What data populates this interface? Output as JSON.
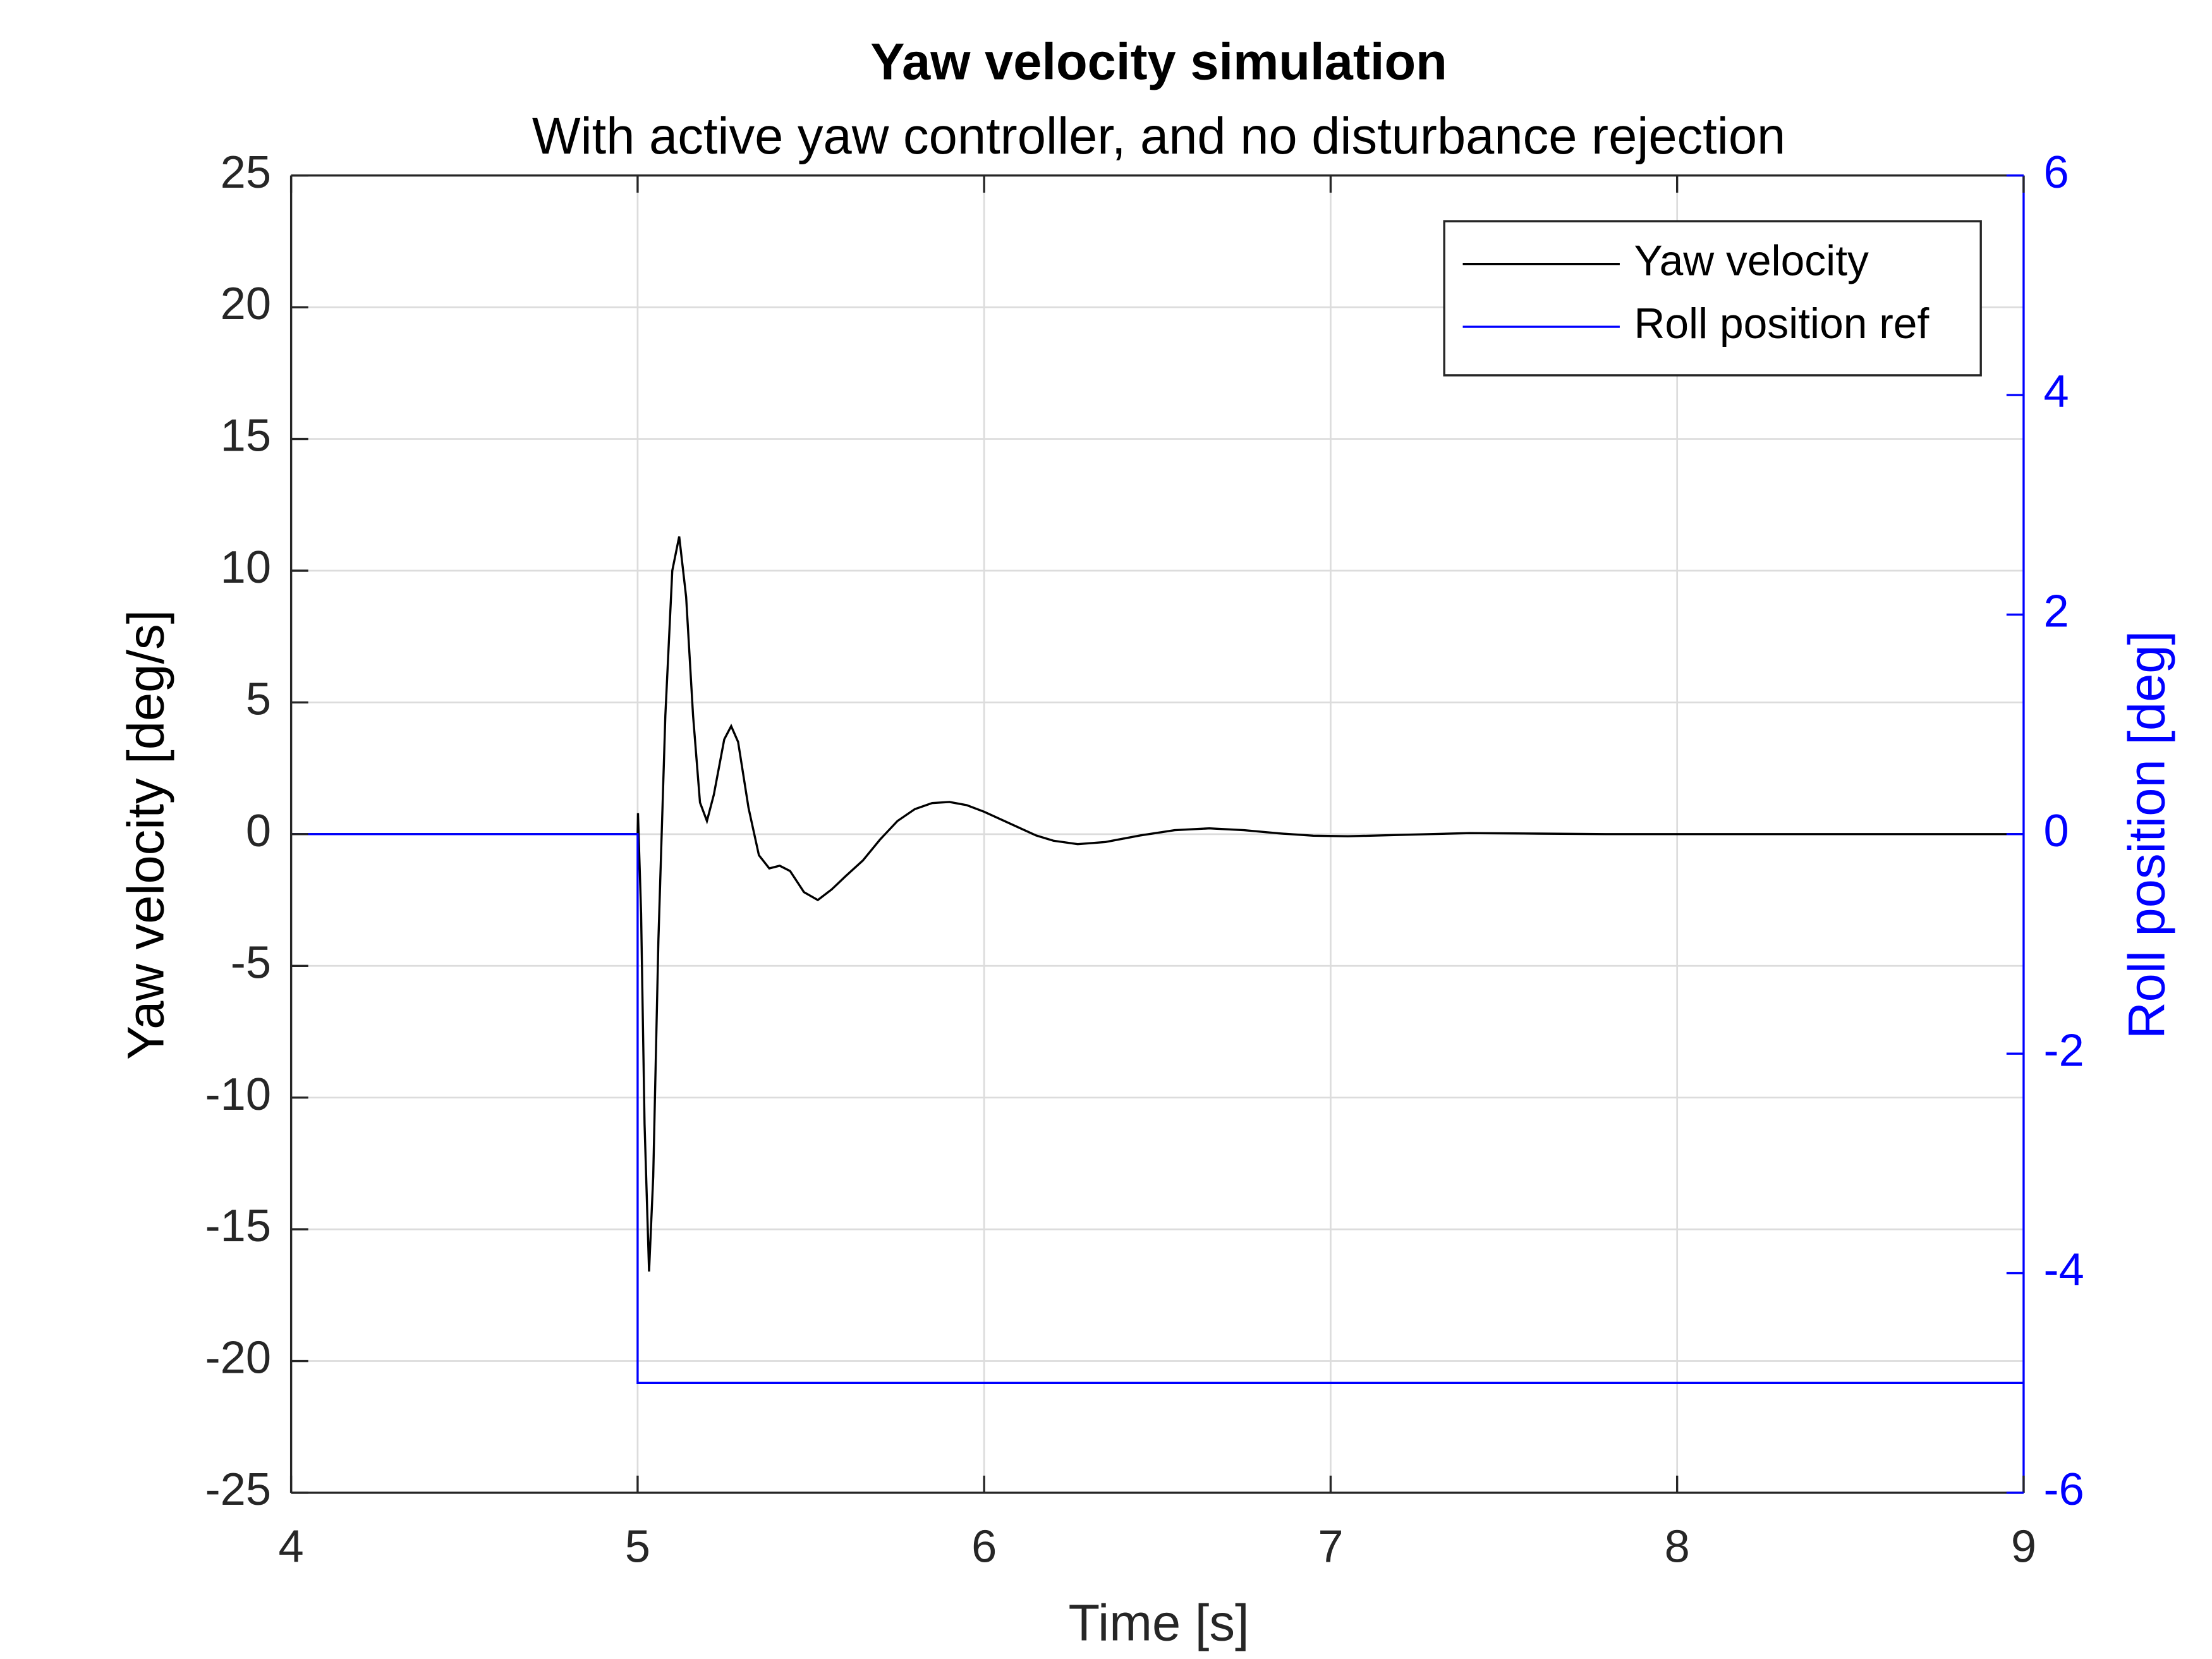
{
  "chart_data": {
    "type": "line",
    "title": "Yaw velocity simulation",
    "subtitle": "With active yaw controller, and no disturbance rejection",
    "x_label": "Time [s]",
    "y_label": "Yaw velocity [deg/s]",
    "y2_label": "Roll position [deg]",
    "xlim": [
      4,
      9
    ],
    "xticks": [
      4,
      5,
      6,
      7,
      8,
      9
    ],
    "ylim": [
      -25,
      25
    ],
    "yticks": [
      -25,
      -20,
      -15,
      -10,
      -5,
      0,
      5,
      10,
      15,
      20,
      25
    ],
    "y2lim": [
      -6,
      6
    ],
    "y2ticks": [
      -6,
      -4,
      -2,
      0,
      2,
      4,
      6
    ],
    "grid": true,
    "legend": "upper right",
    "series": [
      {
        "name": "Yaw velocity",
        "color": "#000000",
        "x": [
          4,
          5,
          5.001,
          5.01,
          5.02,
          5.033,
          5.045,
          5.06,
          5.08,
          5.1,
          5.12,
          5.14,
          5.16,
          5.18,
          5.2,
          5.22,
          5.25,
          5.27,
          5.29,
          5.32,
          5.35,
          5.38,
          5.41,
          5.44,
          5.48,
          5.52,
          5.56,
          5.6,
          5.65,
          5.7,
          5.75,
          5.8,
          5.85,
          5.9,
          5.95,
          6,
          6.05,
          6.1,
          6.15,
          6.2,
          6.27,
          6.35,
          6.45,
          6.55,
          6.65,
          6.75,
          6.85,
          6.95,
          7.05,
          7.2,
          7.4,
          7.6,
          7.8,
          8.5,
          9
        ],
        "values": [
          0,
          0,
          0.8,
          -3,
          -11,
          -16.6,
          -13,
          -4,
          4.5,
          10,
          11.3,
          9,
          4.5,
          1.2,
          0.5,
          1.5,
          3.6,
          4.1,
          3.5,
          1,
          -0.8,
          -1.3,
          -1.2,
          -1.4,
          -2.2,
          -2.5,
          -2.1,
          -1.6,
          -1,
          -0.2,
          0.5,
          0.95,
          1.18,
          1.22,
          1.1,
          0.85,
          0.55,
          0.25,
          -0.05,
          -0.25,
          -0.38,
          -0.3,
          -0.05,
          0.15,
          0.22,
          0.15,
          0.03,
          -0.06,
          -0.08,
          -0.03,
          0.04,
          0.02,
          0,
          0,
          0
        ]
      },
      {
        "name": "Roll position ref",
        "color": "#0000ff",
        "axis": "y2",
        "x": [
          4,
          5,
          5,
          9
        ],
        "values": [
          0,
          0,
          -5,
          -5
        ]
      }
    ]
  }
}
